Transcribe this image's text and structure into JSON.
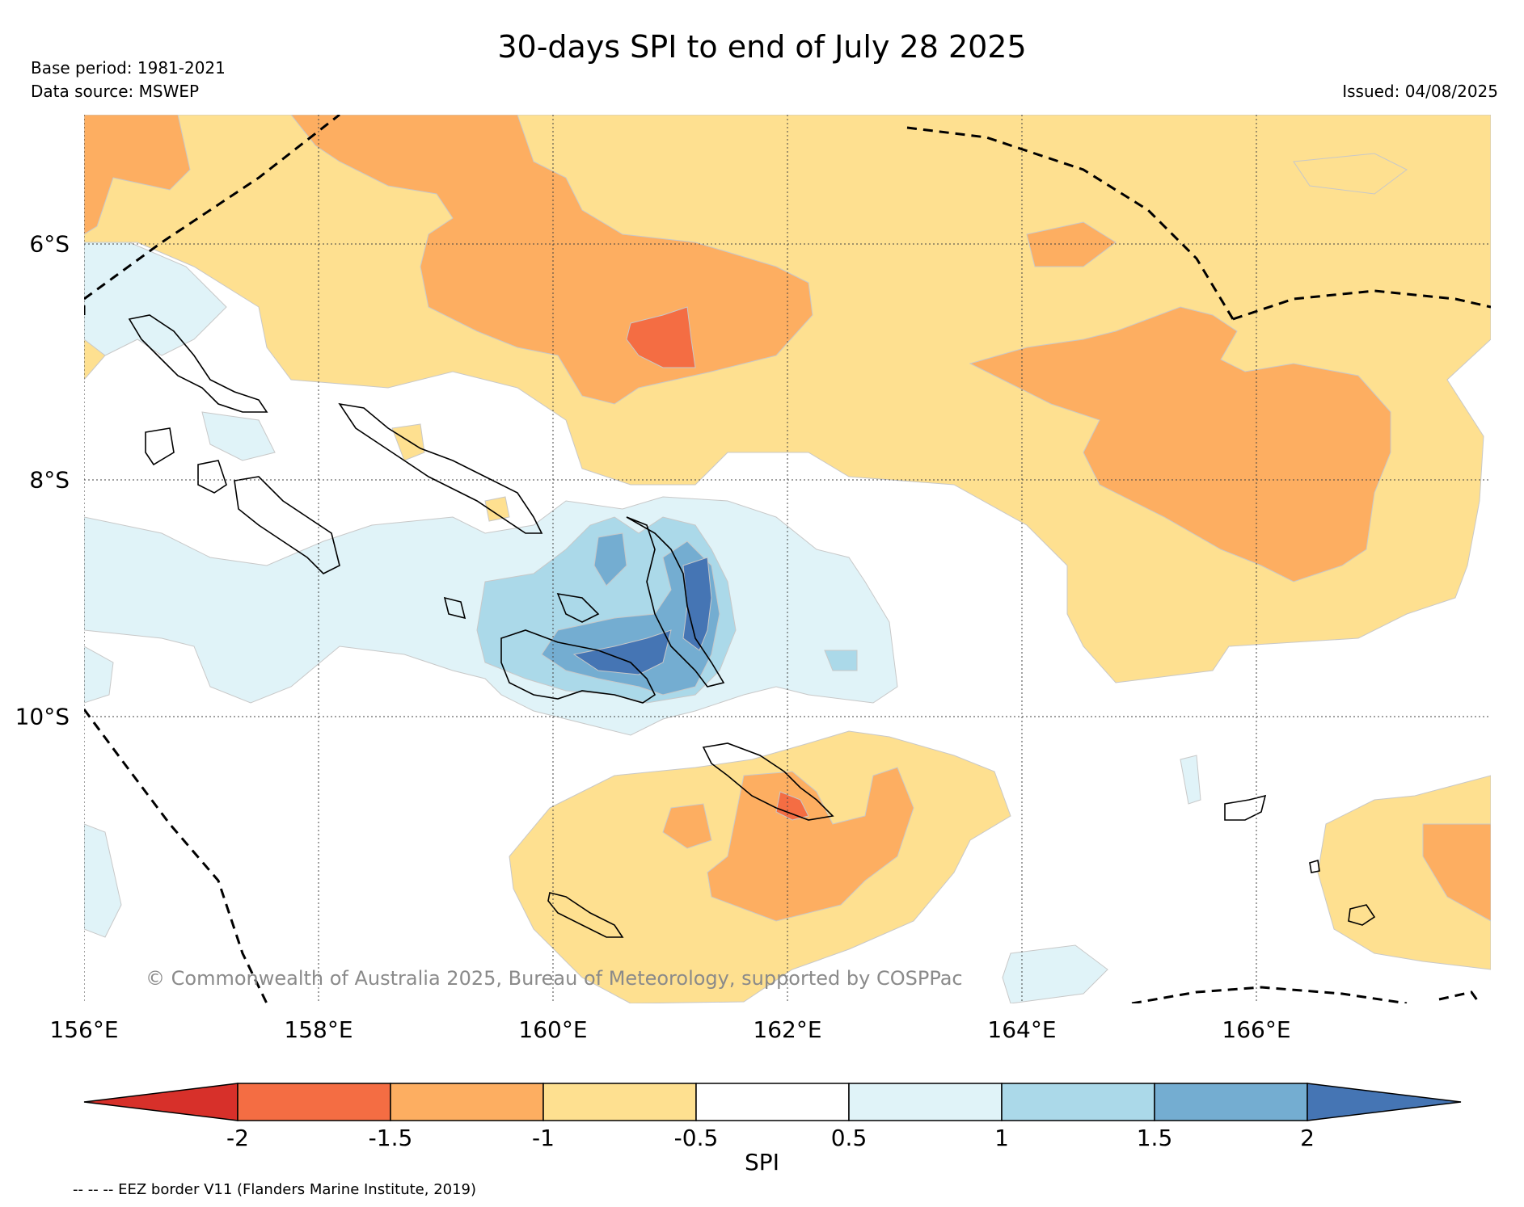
{
  "title": "30-days SPI to end of July 28 2025",
  "base_period": "Base period: 1981-2021",
  "data_source": "Data source: MSWEP",
  "issued": "Issued: 04/08/2025",
  "copyright": "© Commonwealth of Australia 2025, Bureau of Meteorology, supported by COSPPac",
  "eez_note": "-- -- -- EEZ border V11 (Flanders Marine Institute, 2019)",
  "map": {
    "lon_labels": [
      "156°E",
      "158°E",
      "160°E",
      "162°E",
      "164°E",
      "166°E"
    ],
    "lat_labels": [
      "6°S",
      "8°S",
      "10°S"
    ],
    "lon_range": [
      156,
      168
    ],
    "lat_range": [
      -4.9,
      -12.4
    ]
  },
  "colorbar": {
    "label": "SPI",
    "ticks": [
      "-2",
      "-1.5",
      "-1",
      "-0.5",
      "0.5",
      "1",
      "1.5",
      "2"
    ],
    "colors": [
      "#d7302a",
      "#f46d43",
      "#fdae61",
      "#fee090",
      "#ffffff",
      "#e0f3f8",
      "#abd9e9",
      "#74add1",
      "#4575b4"
    ]
  }
}
